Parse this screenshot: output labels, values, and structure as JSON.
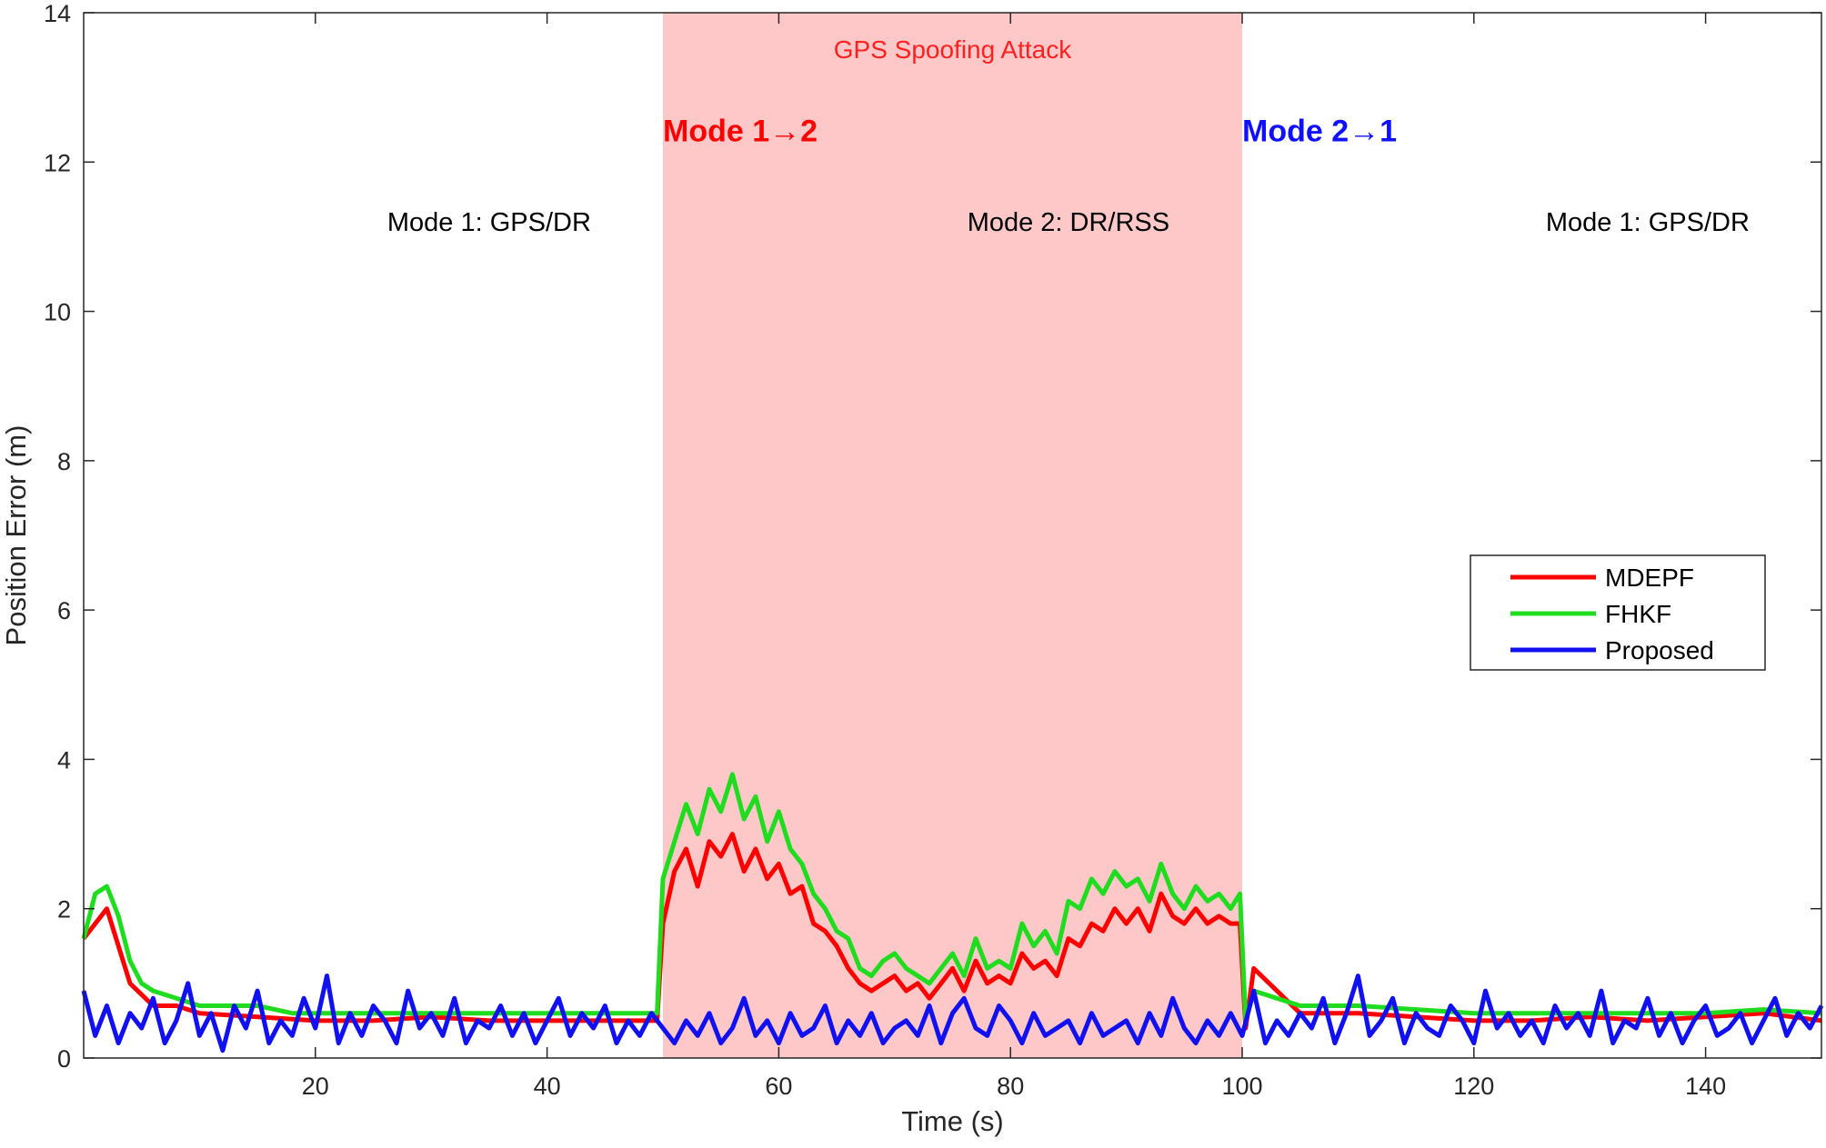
{
  "chart_data": {
    "type": "line",
    "xlabel": "Time (s)",
    "ylabel": "Position Error (m)",
    "xlim": [
      0,
      150
    ],
    "ylim": [
      0,
      14
    ],
    "xticks": [
      20,
      40,
      60,
      80,
      100,
      120,
      140
    ],
    "yticks": [
      0,
      2,
      4,
      6,
      8,
      10,
      12,
      14
    ],
    "grid": false,
    "legend_position": "right",
    "region": {
      "x_start": 50,
      "x_end": 100,
      "label": "GPS Spoofing Attack",
      "color": "#ffc8c8",
      "label_color": "#ff2020"
    },
    "annotations": [
      {
        "text": "Mode 1→2",
        "x": 50,
        "y": 12.4,
        "color": "#ff0000",
        "style": "bold"
      },
      {
        "text": "Mode 2→1",
        "x": 100,
        "y": 12.4,
        "color": "#1010ff",
        "style": "bold"
      },
      {
        "text": "Mode 1: GPS/DR",
        "x": 35,
        "y": 11.2,
        "color": "#000000",
        "style": "normal"
      },
      {
        "text": "Mode 2: DR/RSS",
        "x": 85,
        "y": 11.2,
        "color": "#000000",
        "style": "normal"
      },
      {
        "text": "Mode 1: GPS/DR",
        "x": 135,
        "y": 11.2,
        "color": "#000000",
        "style": "normal"
      }
    ],
    "series": [
      {
        "name": "MDEPF",
        "color": "#ff0000",
        "x": [
          0,
          2,
          4,
          6,
          8,
          10,
          15,
          20,
          25,
          30,
          35,
          40,
          45,
          49.5,
          50,
          51,
          52,
          53,
          54,
          55,
          56,
          57,
          58,
          59,
          60,
          61,
          62,
          63,
          64,
          65,
          66,
          67,
          68,
          69,
          70,
          71,
          72,
          73,
          74,
          75,
          76,
          77,
          78,
          79,
          80,
          81,
          82,
          83,
          84,
          85,
          86,
          87,
          88,
          89,
          90,
          91,
          92,
          93,
          94,
          95,
          96,
          97,
          98,
          99,
          99.8,
          100.3,
          101,
          105,
          110,
          115,
          120,
          125,
          130,
          135,
          140,
          145,
          150
        ],
        "values": [
          1.6,
          2.0,
          1.0,
          0.7,
          0.7,
          0.6,
          0.55,
          0.5,
          0.5,
          0.55,
          0.5,
          0.5,
          0.5,
          0.5,
          1.8,
          2.5,
          2.8,
          2.3,
          2.9,
          2.7,
          3.0,
          2.5,
          2.8,
          2.4,
          2.6,
          2.2,
          2.3,
          1.8,
          1.7,
          1.5,
          1.2,
          1.0,
          0.9,
          1.0,
          1.1,
          0.9,
          1.0,
          0.8,
          1.0,
          1.2,
          0.9,
          1.3,
          1.0,
          1.1,
          1.0,
          1.4,
          1.2,
          1.3,
          1.1,
          1.6,
          1.5,
          1.8,
          1.7,
          2.0,
          1.8,
          2.0,
          1.7,
          2.2,
          1.9,
          1.8,
          2.0,
          1.8,
          1.9,
          1.8,
          1.8,
          0.4,
          1.2,
          0.6,
          0.6,
          0.55,
          0.5,
          0.5,
          0.55,
          0.5,
          0.55,
          0.6,
          0.5
        ]
      },
      {
        "name": "FHKF",
        "color": "#1fdc1f",
        "x": [
          0,
          1,
          2,
          3,
          4,
          5,
          6,
          8,
          10,
          12,
          15,
          18,
          20,
          25,
          30,
          35,
          40,
          45,
          48,
          49.5,
          50,
          51,
          52,
          53,
          54,
          55,
          56,
          57,
          58,
          59,
          60,
          61,
          62,
          63,
          64,
          65,
          66,
          67,
          68,
          69,
          70,
          71,
          72,
          73,
          74,
          75,
          76,
          77,
          78,
          79,
          80,
          81,
          82,
          83,
          84,
          85,
          86,
          87,
          88,
          89,
          90,
          91,
          92,
          93,
          94,
          95,
          96,
          97,
          98,
          99,
          99.8,
          100.3,
          101,
          105,
          110,
          115,
          120,
          125,
          130,
          135,
          140,
          145,
          150
        ],
        "values": [
          1.6,
          2.2,
          2.3,
          1.9,
          1.3,
          1.0,
          0.9,
          0.8,
          0.7,
          0.7,
          0.7,
          0.6,
          0.6,
          0.6,
          0.6,
          0.6,
          0.6,
          0.6,
          0.6,
          0.6,
          2.4,
          2.9,
          3.4,
          3.0,
          3.6,
          3.3,
          3.8,
          3.2,
          3.5,
          2.9,
          3.3,
          2.8,
          2.6,
          2.2,
          2.0,
          1.7,
          1.6,
          1.2,
          1.1,
          1.3,
          1.4,
          1.2,
          1.1,
          1.0,
          1.2,
          1.4,
          1.1,
          1.6,
          1.2,
          1.3,
          1.2,
          1.8,
          1.5,
          1.7,
          1.4,
          2.1,
          2.0,
          2.4,
          2.2,
          2.5,
          2.3,
          2.4,
          2.1,
          2.6,
          2.2,
          2.0,
          2.3,
          2.1,
          2.2,
          2.0,
          2.2,
          0.5,
          0.9,
          0.7,
          0.7,
          0.65,
          0.6,
          0.6,
          0.6,
          0.6,
          0.6,
          0.65,
          0.6
        ]
      },
      {
        "name": "Proposed",
        "color": "#1010f0",
        "x": [
          0,
          1,
          2,
          3,
          4,
          5,
          6,
          7,
          8,
          9,
          10,
          11,
          12,
          13,
          14,
          15,
          16,
          17,
          18,
          19,
          20,
          21,
          22,
          23,
          24,
          25,
          26,
          27,
          28,
          29,
          30,
          31,
          32,
          33,
          34,
          35,
          36,
          37,
          38,
          39,
          40,
          41,
          42,
          43,
          44,
          45,
          46,
          47,
          48,
          49,
          50,
          51,
          52,
          53,
          54,
          55,
          56,
          57,
          58,
          59,
          60,
          61,
          62,
          63,
          64,
          65,
          66,
          67,
          68,
          69,
          70,
          71,
          72,
          73,
          74,
          75,
          76,
          77,
          78,
          79,
          80,
          81,
          82,
          83,
          84,
          85,
          86,
          87,
          88,
          89,
          90,
          91,
          92,
          93,
          94,
          95,
          96,
          97,
          98,
          99,
          100,
          101,
          102,
          103,
          104,
          105,
          106,
          107,
          108,
          109,
          110,
          111,
          112,
          113,
          114,
          115,
          116,
          117,
          118,
          119,
          120,
          121,
          122,
          123,
          124,
          125,
          126,
          127,
          128,
          129,
          130,
          131,
          132,
          133,
          134,
          135,
          136,
          137,
          138,
          139,
          140,
          141,
          142,
          143,
          144,
          145,
          146,
          147,
          148,
          149,
          150
        ],
        "values": [
          0.9,
          0.3,
          0.7,
          0.2,
          0.6,
          0.4,
          0.8,
          0.2,
          0.5,
          1.0,
          0.3,
          0.6,
          0.1,
          0.7,
          0.4,
          0.9,
          0.2,
          0.5,
          0.3,
          0.8,
          0.4,
          1.1,
          0.2,
          0.6,
          0.3,
          0.7,
          0.5,
          0.2,
          0.9,
          0.4,
          0.6,
          0.3,
          0.8,
          0.2,
          0.5,
          0.4,
          0.7,
          0.3,
          0.6,
          0.2,
          0.5,
          0.8,
          0.3,
          0.6,
          0.4,
          0.7,
          0.2,
          0.5,
          0.3,
          0.6,
          0.4,
          0.2,
          0.5,
          0.3,
          0.6,
          0.2,
          0.4,
          0.8,
          0.3,
          0.5,
          0.2,
          0.6,
          0.3,
          0.4,
          0.7,
          0.2,
          0.5,
          0.3,
          0.6,
          0.2,
          0.4,
          0.5,
          0.3,
          0.7,
          0.2,
          0.6,
          0.8,
          0.4,
          0.3,
          0.7,
          0.5,
          0.2,
          0.6,
          0.3,
          0.4,
          0.5,
          0.2,
          0.6,
          0.3,
          0.4,
          0.5,
          0.2,
          0.6,
          0.3,
          0.8,
          0.4,
          0.2,
          0.5,
          0.3,
          0.6,
          0.3,
          0.9,
          0.2,
          0.5,
          0.3,
          0.6,
          0.4,
          0.8,
          0.2,
          0.6,
          1.1,
          0.3,
          0.5,
          0.8,
          0.2,
          0.6,
          0.4,
          0.3,
          0.7,
          0.5,
          0.2,
          0.9,
          0.4,
          0.6,
          0.3,
          0.5,
          0.2,
          0.7,
          0.4,
          0.6,
          0.3,
          0.9,
          0.2,
          0.5,
          0.4,
          0.8,
          0.3,
          0.6,
          0.2,
          0.5,
          0.7,
          0.3,
          0.4,
          0.6,
          0.2,
          0.5,
          0.8,
          0.3,
          0.6,
          0.4,
          0.7
        ]
      }
    ]
  }
}
